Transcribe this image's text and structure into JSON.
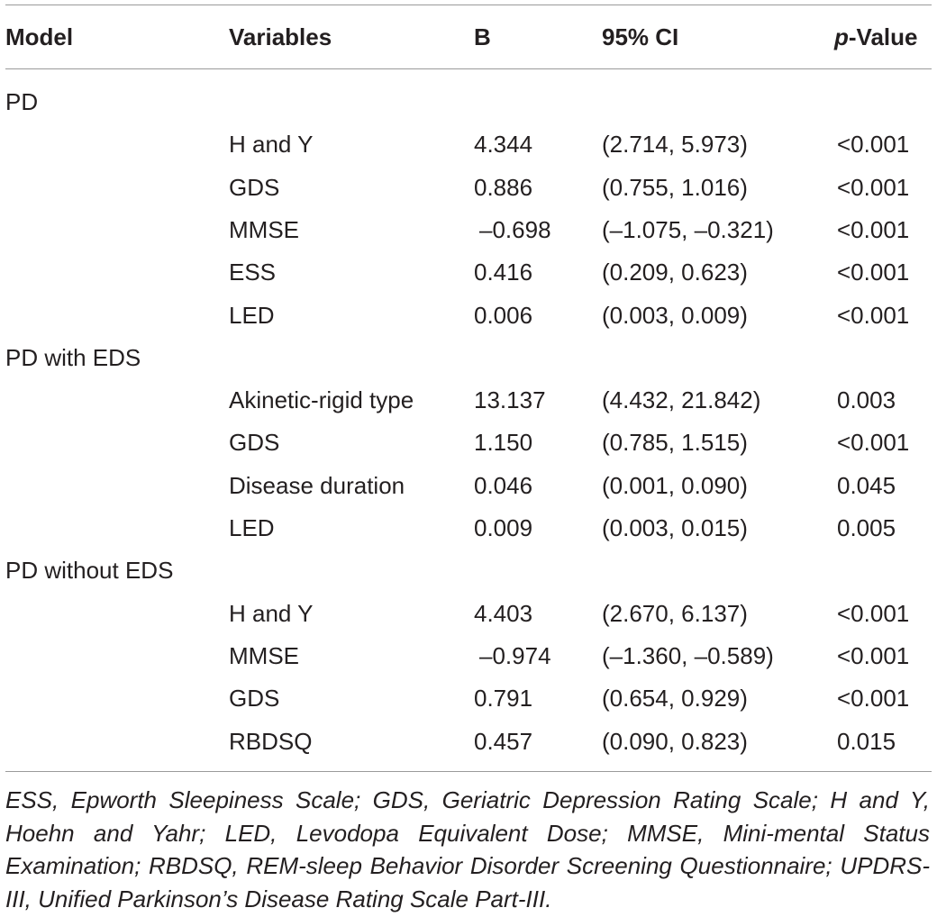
{
  "table": {
    "headers": {
      "model": "Model",
      "variables": "Variables",
      "b": "B",
      "ci": "95% CI",
      "p_italic": "p",
      "p_rest": "-Value"
    },
    "groups": [
      {
        "model": "PD",
        "rows": [
          {
            "variable": "H and Y",
            "b": "4.344",
            "ci": "(2.714, 5.973)",
            "p": "<0.001"
          },
          {
            "variable": "GDS",
            "b": "0.886",
            "ci": "(0.755, 1.016)",
            "p": "<0.001"
          },
          {
            "variable": "MMSE",
            "b": "–0.698",
            "ci": "(–1.075, –0.321)",
            "p": "<0.001"
          },
          {
            "variable": "ESS",
            "b": "0.416",
            "ci": "(0.209, 0.623)",
            "p": "<0.001"
          },
          {
            "variable": "LED",
            "b": "0.006",
            "ci": "(0.003, 0.009)",
            "p": "<0.001"
          }
        ]
      },
      {
        "model": "PD with EDS",
        "rows": [
          {
            "variable": "Akinetic-rigid type",
            "b": "13.137",
            "ci": "(4.432, 21.842)",
            "p": "0.003"
          },
          {
            "variable": "GDS",
            "b": "1.150",
            "ci": "(0.785, 1.515)",
            "p": "<0.001"
          },
          {
            "variable": "Disease duration",
            "b": "0.046",
            "ci": "(0.001, 0.090)",
            "p": "0.045"
          },
          {
            "variable": "LED",
            "b": "0.009",
            "ci": "(0.003, 0.015)",
            "p": "0.005"
          }
        ]
      },
      {
        "model": "PD without EDS",
        "rows": [
          {
            "variable": "H and Y",
            "b": "4.403",
            "ci": "(2.670, 6.137)",
            "p": "<0.001"
          },
          {
            "variable": "MMSE",
            "b": "–0.974",
            "ci": "(–1.360, –0.589)",
            "p": "<0.001"
          },
          {
            "variable": "GDS",
            "b": "0.791",
            "ci": "(0.654, 0.929)",
            "p": "<0.001"
          },
          {
            "variable": "RBDSQ",
            "b": "0.457",
            "ci": "(0.090, 0.823)",
            "p": "0.015"
          }
        ]
      }
    ]
  },
  "footnote": "ESS, Epworth Sleepiness Scale; GDS, Geriatric Depression Rating Scale; H and Y, Hoehn and Yahr; LED, Levodopa Equivalent Dose; MMSE, Mini-mental Status Examination; RBDSQ, REM-sleep Behavior Disorder Screening Questionnaire; UPDRS-III, Unified Parkinson’s Disease Rating Scale Part-III."
}
